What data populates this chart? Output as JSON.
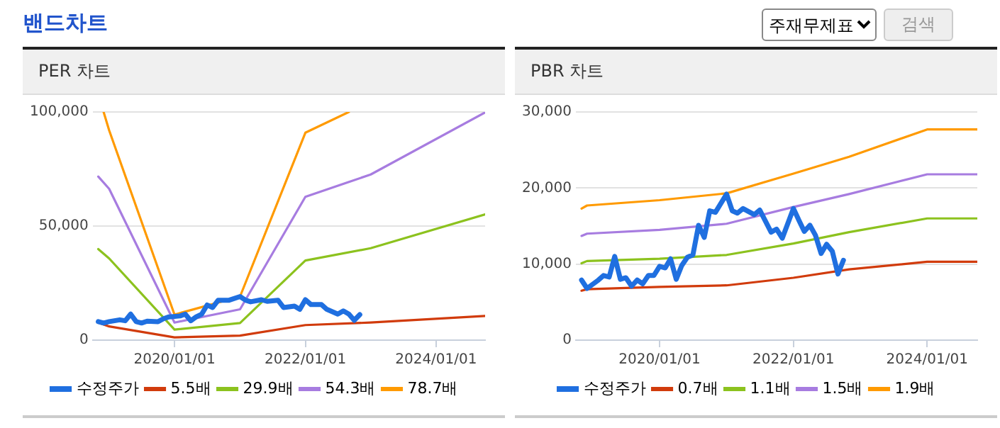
{
  "chart_data": [
    {
      "type": "line",
      "title": "PER 차트",
      "annotations": [
        "밴드차트"
      ],
      "grid": "y",
      "legend": "bottom",
      "marker": "none",
      "line_style": "solid",
      "xlim": [
        "2018-10",
        "2024-10"
      ],
      "xticks": [
        {
          "value": "2020-01-01",
          "label": "2020/01/01"
        },
        {
          "value": "2022-01-01",
          "label": "2022/01/01"
        },
        {
          "value": "2024-01-01",
          "label": "2024/01/01"
        }
      ],
      "ylim": [
        0,
        100000
      ],
      "yticks": [
        0,
        {
          "value": 50000,
          "label": "50,000"
        },
        {
          "value": 100000,
          "label": "100,000"
        }
      ],
      "series": [
        {
          "name": "수정주가",
          "color": "#1f6fe0",
          "x": [
            "2018-11",
            "2018-12",
            "2019-01",
            "2019-03",
            "2019-04",
            "2019-05",
            "2019-06",
            "2019-07",
            "2019-08",
            "2019-10",
            "2019-11",
            "2019-12",
            "2020-02",
            "2020-03",
            "2020-04",
            "2020-05",
            "2020-06",
            "2020-07",
            "2020-08",
            "2020-09",
            "2020-11",
            "2021-01",
            "2021-02",
            "2021-03",
            "2021-05",
            "2021-06",
            "2021-08",
            "2021-09",
            "2021-11",
            "2021-12",
            "2022-01",
            "2022-02",
            "2022-04",
            "2022-05",
            "2022-07",
            "2022-08",
            "2022-09",
            "2022-10",
            "2022-11"
          ],
          "values": [
            8100,
            7500,
            8100,
            8900,
            8500,
            11400,
            8100,
            7500,
            8300,
            8100,
            9400,
            10200,
            10600,
            11400,
            8500,
            10200,
            11400,
            15400,
            14300,
            17500,
            17500,
            19100,
            17500,
            16800,
            17700,
            17000,
            17500,
            14300,
            14900,
            13500,
            17700,
            15600,
            15600,
            13500,
            11400,
            12800,
            11400,
            8700,
            11200
          ]
        },
        {
          "name": "5.5배",
          "color": "#d13b0c",
          "x": [
            "2018-11",
            "2019-01",
            "2020-01",
            "2021-01",
            "2022-01",
            "2023-01",
            "2024-10"
          ],
          "values": [
            7700,
            6000,
            1200,
            2000,
            6600,
            7700,
            10600
          ]
        },
        {
          "name": "29.9배",
          "color": "#8cc21e",
          "x": [
            "2018-11",
            "2019-01",
            "2020-01",
            "2021-01",
            "2022-01",
            "2023-01",
            "2024-10"
          ],
          "values": [
            39900,
            35800,
            4600,
            7500,
            34900,
            40300,
            55100
          ]
        },
        {
          "name": "54.3배",
          "color": "#a77ce0",
          "x": [
            "2018-11",
            "2019-01",
            "2020-01",
            "2021-01",
            "2022-01",
            "2023-01",
            "2024-10"
          ],
          "values": [
            71700,
            66300,
            7700,
            13500,
            62800,
            72600,
            99800
          ]
        },
        {
          "name": "78.7배",
          "color": "#ff9a00",
          "x": [
            "2018-12",
            "2019-01",
            "2020-01",
            "2021-01",
            "2022-01",
            "2022-09"
          ],
          "values": [
            100000,
            91900,
            11200,
            19100,
            90900,
            100000
          ]
        }
      ]
    },
    {
      "type": "line",
      "title": "PBR 차트",
      "annotations": [
        "주재무제표",
        "검색"
      ],
      "grid": "y",
      "legend": "bottom",
      "marker": "none",
      "line_style": "solid",
      "xlim": [
        "2018-10",
        "2024-10"
      ],
      "xticks": [
        {
          "value": "2020-01-01",
          "label": "2020/01/01"
        },
        {
          "value": "2022-01-01",
          "label": "2022/01/01"
        },
        {
          "value": "2024-01-01",
          "label": "2024/01/01"
        }
      ],
      "ylim": [
        0,
        30000
      ],
      "yticks": [
        0,
        {
          "value": 10000,
          "label": "10,000"
        },
        {
          "value": 20000,
          "label": "20,000"
        },
        {
          "value": 30000,
          "label": "30,000"
        }
      ],
      "series": [
        {
          "name": "수정주가",
          "color": "#1f6fe0",
          "x": [
            "2018-11",
            "2018-12",
            "2019-02",
            "2019-03",
            "2019-04",
            "2019-05",
            "2019-06",
            "2019-07",
            "2019-08",
            "2019-09",
            "2019-10",
            "2019-11",
            "2019-12",
            "2020-01",
            "2020-02",
            "2020-03",
            "2020-04",
            "2020-05",
            "2020-06",
            "2020-07",
            "2020-08",
            "2020-09",
            "2020-10",
            "2020-11",
            "2021-01",
            "2021-02",
            "2021-03",
            "2021-04",
            "2021-06",
            "2021-07",
            "2021-09",
            "2021-10",
            "2021-11",
            "2022-01",
            "2022-02",
            "2022-03",
            "2022-04",
            "2022-05",
            "2022-06",
            "2022-07",
            "2022-08",
            "2022-09",
            "2022-10"
          ],
          "values": [
            7900,
            6800,
            7900,
            8500,
            8300,
            11000,
            8000,
            8200,
            7100,
            7900,
            7400,
            8500,
            8500,
            9700,
            9500,
            10700,
            8000,
            9800,
            10900,
            11200,
            15100,
            13500,
            17000,
            16800,
            19200,
            17000,
            16700,
            17300,
            16500,
            17100,
            14200,
            14600,
            13400,
            17300,
            15700,
            14300,
            15100,
            13800,
            11400,
            12600,
            11700,
            8700,
            10500
          ]
        },
        {
          "name": "0.7배",
          "color": "#d13b0c",
          "x": [
            "2018-11",
            "2018-12",
            "2020-01",
            "2021-01",
            "2022-01",
            "2022-11",
            "2024-01",
            "2024-10"
          ],
          "values": [
            6500,
            6700,
            7000,
            7200,
            8200,
            9300,
            10300,
            10300
          ]
        },
        {
          "name": "1.1배",
          "color": "#8cc21e",
          "x": [
            "2018-11",
            "2018-12",
            "2020-01",
            "2021-01",
            "2022-01",
            "2022-11",
            "2024-01",
            "2024-10"
          ],
          "values": [
            10100,
            10400,
            10700,
            11200,
            12700,
            14200,
            16000,
            16000
          ]
        },
        {
          "name": "1.5배",
          "color": "#a77ce0",
          "x": [
            "2018-11",
            "2018-12",
            "2020-01",
            "2021-01",
            "2022-01",
            "2022-11",
            "2024-01",
            "2024-10"
          ],
          "values": [
            13700,
            14000,
            14500,
            15300,
            17500,
            19200,
            21800,
            21800
          ]
        },
        {
          "name": "1.9배",
          "color": "#ff9a00",
          "x": [
            "2018-11",
            "2018-12",
            "2020-01",
            "2021-01",
            "2022-01",
            "2022-11",
            "2024-01",
            "2024-10"
          ],
          "values": [
            17300,
            17700,
            18400,
            19300,
            21900,
            24100,
            27700,
            27700
          ]
        }
      ]
    }
  ]
}
